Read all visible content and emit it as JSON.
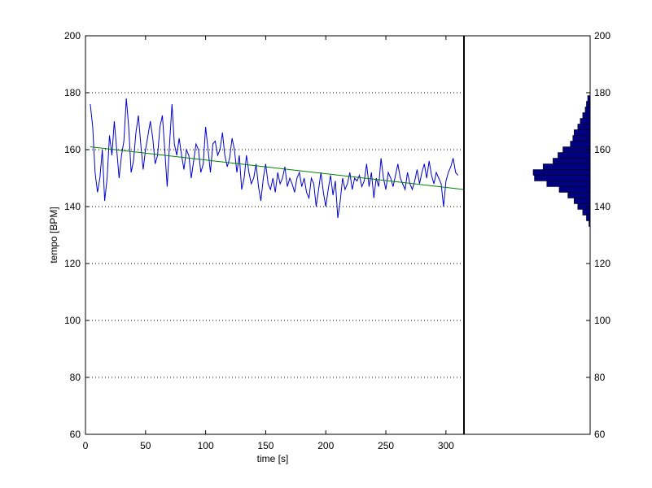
{
  "chart_data": {
    "type": "line",
    "xlabel": "time [s]",
    "ylabel": "tempo [BPM]",
    "xlim": [
      0,
      315
    ],
    "ylim": [
      60,
      200
    ],
    "xticks": [
      0,
      50,
      100,
      150,
      200,
      250,
      300
    ],
    "yticks": [
      60,
      80,
      100,
      120,
      140,
      160,
      180,
      200
    ],
    "grid": "horizontal dotted",
    "colors": {
      "tempo": "#0000cc",
      "trend": "#008000",
      "histogram": "#000080"
    },
    "series": [
      {
        "values": [
          [
            4,
            176
          ],
          [
            6,
            168
          ],
          [
            8,
            152
          ],
          [
            10,
            145
          ],
          [
            12,
            150
          ],
          [
            14,
            160
          ],
          [
            16,
            142
          ],
          [
            18,
            150
          ],
          [
            20,
            165
          ],
          [
            22,
            158
          ],
          [
            24,
            170
          ],
          [
            26,
            160
          ],
          [
            28,
            150
          ],
          [
            30,
            158
          ],
          [
            32,
            163
          ],
          [
            34,
            178
          ],
          [
            36,
            168
          ],
          [
            38,
            152
          ],
          [
            40,
            156
          ],
          [
            42,
            166
          ],
          [
            44,
            172
          ],
          [
            46,
            162
          ],
          [
            48,
            153
          ],
          [
            50,
            160
          ],
          [
            52,
            165
          ],
          [
            54,
            170
          ],
          [
            56,
            164
          ],
          [
            58,
            155
          ],
          [
            60,
            158
          ],
          [
            62,
            168
          ],
          [
            64,
            172
          ],
          [
            66,
            160
          ],
          [
            68,
            147
          ],
          [
            70,
            162
          ],
          [
            72,
            176
          ],
          [
            74,
            162
          ],
          [
            76,
            158
          ],
          [
            78,
            164
          ],
          [
            80,
            158
          ],
          [
            82,
            153
          ],
          [
            84,
            160
          ],
          [
            86,
            158
          ],
          [
            88,
            150
          ],
          [
            90,
            156
          ],
          [
            92,
            162
          ],
          [
            94,
            160
          ],
          [
            96,
            152
          ],
          [
            98,
            155
          ],
          [
            100,
            168
          ],
          [
            102,
            160
          ],
          [
            104,
            152
          ],
          [
            106,
            162
          ],
          [
            108,
            163
          ],
          [
            110,
            158
          ],
          [
            112,
            160
          ],
          [
            114,
            166
          ],
          [
            116,
            158
          ],
          [
            118,
            154
          ],
          [
            120,
            157
          ],
          [
            122,
            164
          ],
          [
            124,
            160
          ],
          [
            126,
            152
          ],
          [
            128,
            158
          ],
          [
            130,
            146
          ],
          [
            132,
            150
          ],
          [
            134,
            158
          ],
          [
            136,
            152
          ],
          [
            138,
            148
          ],
          [
            140,
            150
          ],
          [
            142,
            155
          ],
          [
            144,
            147
          ],
          [
            146,
            142
          ],
          [
            148,
            150
          ],
          [
            150,
            155
          ],
          [
            152,
            148
          ],
          [
            154,
            146
          ],
          [
            156,
            150
          ],
          [
            158,
            145
          ],
          [
            160,
            152
          ],
          [
            162,
            148
          ],
          [
            164,
            150
          ],
          [
            166,
            154
          ],
          [
            168,
            147
          ],
          [
            170,
            150
          ],
          [
            172,
            148
          ],
          [
            174,
            145
          ],
          [
            176,
            150
          ],
          [
            178,
            152
          ],
          [
            180,
            147
          ],
          [
            182,
            150
          ],
          [
            184,
            145
          ],
          [
            186,
            143
          ],
          [
            188,
            150
          ],
          [
            190,
            148
          ],
          [
            192,
            140
          ],
          [
            194,
            146
          ],
          [
            196,
            152
          ],
          [
            198,
            145
          ],
          [
            200,
            140
          ],
          [
            202,
            146
          ],
          [
            204,
            151
          ],
          [
            206,
            144
          ],
          [
            208,
            149
          ],
          [
            210,
            136
          ],
          [
            212,
            142
          ],
          [
            214,
            150
          ],
          [
            216,
            146
          ],
          [
            218,
            148
          ],
          [
            220,
            152
          ],
          [
            222,
            146
          ],
          [
            224,
            150
          ],
          [
            226,
            149
          ],
          [
            228,
            151
          ],
          [
            230,
            147
          ],
          [
            232,
            149
          ],
          [
            234,
            155
          ],
          [
            236,
            147
          ],
          [
            238,
            152
          ],
          [
            240,
            143
          ],
          [
            242,
            150
          ],
          [
            244,
            147
          ],
          [
            246,
            157
          ],
          [
            248,
            150
          ],
          [
            250,
            146
          ],
          [
            252,
            152
          ],
          [
            254,
            150
          ],
          [
            256,
            147
          ],
          [
            258,
            151
          ],
          [
            260,
            155
          ],
          [
            262,
            150
          ],
          [
            264,
            148
          ],
          [
            266,
            146
          ],
          [
            268,
            152
          ],
          [
            270,
            148
          ],
          [
            272,
            146
          ],
          [
            274,
            149
          ],
          [
            276,
            153
          ],
          [
            278,
            148
          ],
          [
            280,
            152
          ],
          [
            282,
            155
          ],
          [
            284,
            150
          ],
          [
            286,
            156
          ],
          [
            288,
            151
          ],
          [
            290,
            148
          ],
          [
            292,
            152
          ],
          [
            294,
            150
          ],
          [
            296,
            148
          ],
          [
            298,
            140
          ],
          [
            300,
            149
          ],
          [
            302,
            152
          ],
          [
            304,
            154
          ],
          [
            306,
            157
          ],
          [
            308,
            152
          ],
          [
            310,
            151
          ]
        ]
      },
      {
        "values": [
          [
            4,
            161
          ],
          [
            315,
            146
          ]
        ]
      }
    ],
    "histogram": {
      "bins": [
        [
          134,
          1
        ],
        [
          136,
          3
        ],
        [
          138,
          6
        ],
        [
          140,
          10
        ],
        [
          142,
          13
        ],
        [
          144,
          18
        ],
        [
          146,
          25
        ],
        [
          148,
          35
        ],
        [
          150,
          45
        ],
        [
          152,
          46
        ],
        [
          154,
          38
        ],
        [
          156,
          30
        ],
        [
          158,
          26
        ],
        [
          160,
          22
        ],
        [
          162,
          16
        ],
        [
          164,
          14
        ],
        [
          166,
          13
        ],
        [
          168,
          10
        ],
        [
          170,
          8
        ],
        [
          172,
          6
        ],
        [
          174,
          4
        ],
        [
          176,
          3
        ],
        [
          178,
          2
        ]
      ],
      "max_count": 46
    }
  }
}
